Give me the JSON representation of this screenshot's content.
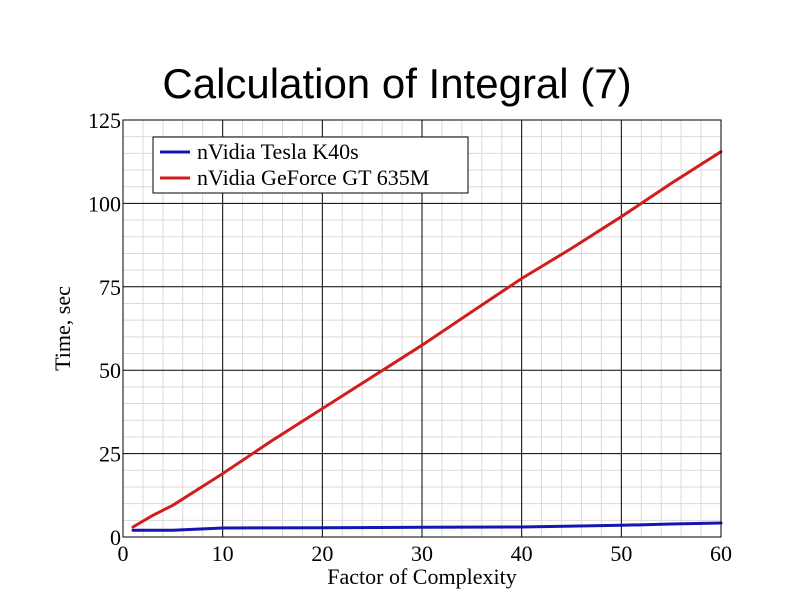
{
  "chart_data": {
    "type": "line",
    "title": "Calculation of Integral (7)",
    "xlabel": "Factor of Complexity",
    "ylabel": "Time, sec",
    "xlim": [
      0,
      60
    ],
    "ylim": [
      0,
      125
    ],
    "xticks": [
      0,
      10,
      20,
      30,
      40,
      50,
      60
    ],
    "yticks": [
      0,
      25,
      50,
      75,
      100,
      125
    ],
    "x_minor_step": 2,
    "y_minor_step": 5,
    "grid": true,
    "legend_position": "top-left",
    "series": [
      {
        "name": "nVidia Tesla K40s",
        "color": "#1515b0",
        "x": [
          1,
          5,
          10,
          20,
          30,
          40,
          50,
          55,
          60
        ],
        "y": [
          2,
          2,
          2.7,
          2.8,
          2.9,
          3,
          3.5,
          3.9,
          4.2
        ]
      },
      {
        "name": "nVidia GeForce GT 635M",
        "color": "#d01e1e",
        "x": [
          1,
          3,
          5,
          10,
          15,
          20,
          25,
          30,
          35,
          40,
          45,
          50,
          55,
          60
        ],
        "y": [
          3,
          6.5,
          9.5,
          19,
          29,
          38.5,
          48,
          57.5,
          67.5,
          77.5,
          86.5,
          96,
          106,
          115.5
        ]
      }
    ]
  }
}
